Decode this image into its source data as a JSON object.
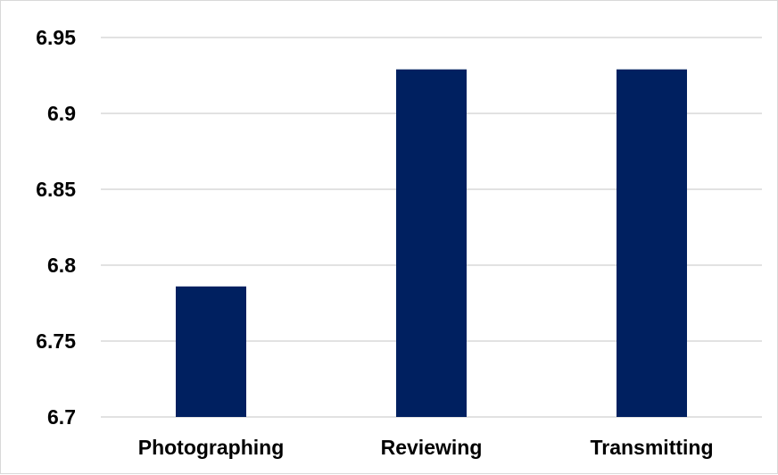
{
  "chart_data": {
    "type": "bar",
    "categories": [
      "Photographing",
      "Reviewing",
      "Transmitting"
    ],
    "values": [
      6.786,
      6.929,
      6.929
    ],
    "ylim": [
      6.7,
      6.95
    ],
    "yticks": [
      6.95,
      6.9,
      6.85,
      6.8,
      6.75,
      6.7
    ],
    "ytick_labels": [
      "6.95",
      "6.9",
      "6.85",
      "6.8",
      "6.75",
      "6.7"
    ],
    "grid": true,
    "legend": "none",
    "bar_color": "#002060",
    "grid_color": "#d9d9d9"
  }
}
